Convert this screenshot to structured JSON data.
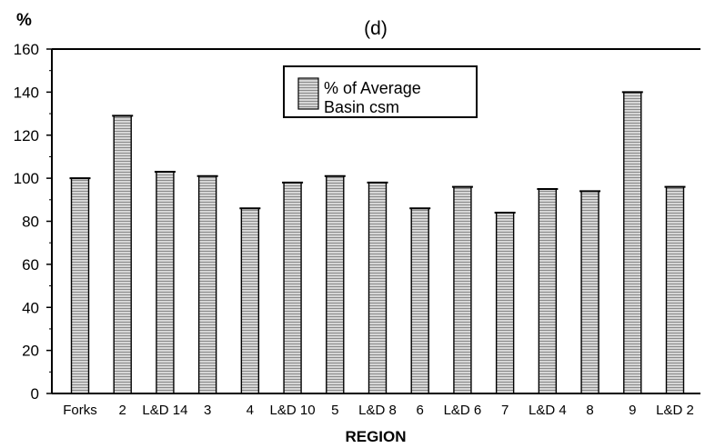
{
  "chart_data": {
    "type": "bar",
    "title": "(d)",
    "ylabel": "%",
    "xlabel": "REGION",
    "categories": [
      "Forks",
      "2",
      "L&D 14",
      "3",
      "4",
      "L&D 10",
      "5",
      "L&D 8",
      "6",
      "L&D 6",
      "7",
      "L&D 4",
      "8",
      "9",
      "L&D 2"
    ],
    "series": [
      {
        "name": "% of Average Basin csm",
        "values": [
          100,
          129,
          103,
          101,
          86,
          98,
          101,
          98,
          86,
          96,
          84,
          95,
          94,
          140,
          96
        ]
      }
    ],
    "ylim": [
      0,
      160
    ],
    "yticks": [
      0,
      20,
      40,
      60,
      80,
      100,
      120,
      140,
      160
    ],
    "legend": {
      "position": "top-center",
      "lines": [
        "% of Average",
        "Basin csm"
      ]
    },
    "grid": false,
    "colors": {
      "bar_fill": "#c9c9c9",
      "bar_stripe": "#8a8a8a",
      "axis": "#000000"
    }
  }
}
